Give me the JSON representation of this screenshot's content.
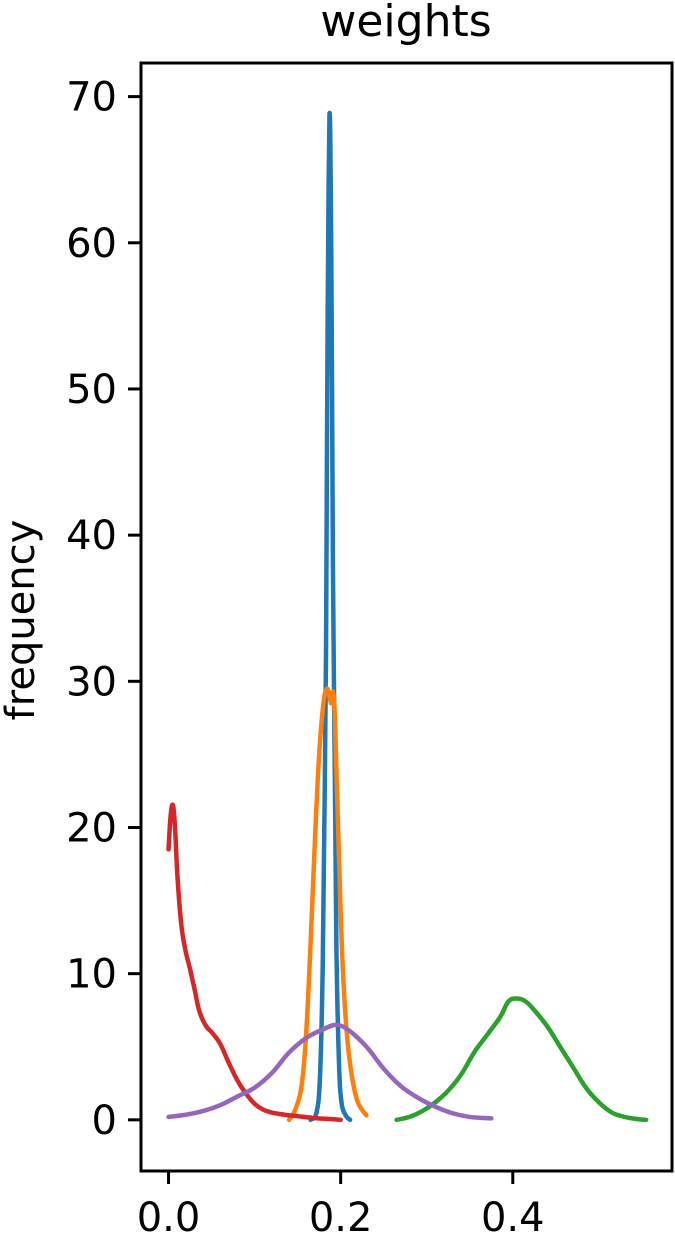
{
  "chart_data": {
    "type": "line",
    "title": "weights",
    "xlabel": "",
    "ylabel": "frequency",
    "xlim": [
      -0.032,
      0.585
    ],
    "ylim": [
      -3.5,
      72.3
    ],
    "xticks": [
      0.0,
      0.2,
      0.4
    ],
    "xtick_labels": [
      "0.0",
      "0.2",
      "0.4"
    ],
    "yticks": [
      0,
      10,
      20,
      30,
      40,
      50,
      60,
      70
    ],
    "ytick_labels": [
      "0",
      "10",
      "20",
      "30",
      "40",
      "50",
      "60",
      "70"
    ],
    "grid": false,
    "series": [
      {
        "color": "#1f77b4",
        "x": [
          0.165,
          0.172,
          0.176,
          0.179,
          0.181,
          0.183,
          0.184,
          0.185,
          0.186,
          0.187,
          0.188,
          0.189,
          0.19,
          0.191,
          0.193,
          0.195,
          0.198,
          0.201,
          0.206,
          0.211
        ],
        "y": [
          0.0,
          0.5,
          3,
          10,
          20,
          32,
          45,
          56,
          64,
          68.7,
          67,
          60,
          50,
          38,
          25,
          12,
          4,
          1.2,
          0.3,
          0.0
        ]
      },
      {
        "color": "#ff7f0e",
        "x": [
          0.14,
          0.148,
          0.155,
          0.16,
          0.165,
          0.17,
          0.175,
          0.18,
          0.184,
          0.187,
          0.189,
          0.191,
          0.193,
          0.195,
          0.198,
          0.202,
          0.207,
          0.213,
          0.22,
          0.23
        ],
        "y": [
          0.0,
          0.8,
          2.5,
          6,
          12,
          19,
          25,
          28.5,
          29.5,
          29.0,
          28.5,
          29.3,
          28,
          24,
          18,
          11,
          6,
          3,
          1.2,
          0.3
        ]
      },
      {
        "color": "#2ca02c",
        "x": [
          0.265,
          0.28,
          0.295,
          0.31,
          0.325,
          0.34,
          0.355,
          0.37,
          0.385,
          0.395,
          0.405,
          0.415,
          0.425,
          0.44,
          0.455,
          0.47,
          0.485,
          0.5,
          0.515,
          0.53,
          0.545,
          0.555
        ],
        "y": [
          0.0,
          0.2,
          0.6,
          1.2,
          2.0,
          3.1,
          4.6,
          5.8,
          7.0,
          8.1,
          8.3,
          8.1,
          7.5,
          6.4,
          5.0,
          3.6,
          2.2,
          1.2,
          0.5,
          0.2,
          0.05,
          0.0
        ]
      },
      {
        "color": "#d62728",
        "x": [
          0.0,
          0.002,
          0.004,
          0.006,
          0.008,
          0.01,
          0.013,
          0.016,
          0.02,
          0.025,
          0.03,
          0.035,
          0.04,
          0.045,
          0.05,
          0.06,
          0.07,
          0.08,
          0.09,
          0.1,
          0.11,
          0.12,
          0.135,
          0.15,
          0.17,
          0.19,
          0.2
        ],
        "y": [
          18.5,
          20.5,
          21.5,
          21.2,
          19.5,
          17,
          14.5,
          12.8,
          11.5,
          10.3,
          9.0,
          7.6,
          6.8,
          6.3,
          6.0,
          5.2,
          3.9,
          2.7,
          1.8,
          1.1,
          0.7,
          0.5,
          0.35,
          0.25,
          0.12,
          0.05,
          0.0
        ]
      },
      {
        "color": "#9467bd",
        "x": [
          0.0,
          0.02,
          0.04,
          0.06,
          0.08,
          0.1,
          0.12,
          0.14,
          0.16,
          0.18,
          0.195,
          0.21,
          0.23,
          0.25,
          0.27,
          0.29,
          0.31,
          0.33,
          0.35,
          0.375
        ],
        "y": [
          0.2,
          0.35,
          0.6,
          1.0,
          1.6,
          2.2,
          3.2,
          4.6,
          5.6,
          6.2,
          6.5,
          6.1,
          5.0,
          3.5,
          2.3,
          1.5,
          0.9,
          0.45,
          0.2,
          0.1
        ]
      }
    ]
  }
}
